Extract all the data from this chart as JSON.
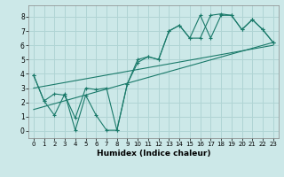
{
  "xlabel": "Humidex (Indice chaleur)",
  "background_color": "#cce8e8",
  "grid_color": "#b0d4d4",
  "line_color": "#1a7a6a",
  "xlim": [
    -0.5,
    23.5
  ],
  "ylim": [
    -0.5,
    8.8
  ],
  "xticks": [
    0,
    1,
    2,
    3,
    4,
    5,
    6,
    7,
    8,
    9,
    10,
    11,
    12,
    13,
    14,
    15,
    16,
    17,
    18,
    19,
    20,
    21,
    22,
    23
  ],
  "yticks": [
    0,
    1,
    2,
    3,
    4,
    5,
    6,
    7,
    8
  ],
  "line1_x": [
    0,
    1,
    2,
    3,
    4,
    5,
    6,
    7,
    8,
    9,
    10,
    11,
    12,
    13,
    14,
    15,
    16,
    17,
    18,
    19,
    20,
    21,
    22,
    23
  ],
  "line1_y": [
    3.9,
    2.1,
    1.1,
    2.6,
    0.05,
    2.5,
    1.1,
    0.05,
    0.05,
    3.3,
    5.0,
    5.2,
    5.0,
    7.0,
    7.4,
    6.5,
    8.1,
    6.5,
    8.1,
    8.1,
    7.1,
    7.8,
    7.1,
    6.2
  ],
  "line2_x": [
    0,
    1,
    2,
    3,
    4,
    5,
    6,
    7,
    8,
    9,
    10,
    11,
    12,
    13,
    14,
    15,
    16,
    17,
    18,
    19,
    20,
    21,
    22,
    23
  ],
  "line2_y": [
    3.9,
    2.1,
    2.6,
    2.5,
    0.9,
    3.0,
    2.9,
    3.0,
    0.05,
    3.3,
    4.8,
    5.2,
    5.0,
    7.0,
    7.4,
    6.5,
    6.5,
    8.1,
    8.2,
    8.1,
    7.1,
    7.8,
    7.1,
    6.2
  ],
  "line3_x": [
    0,
    23
  ],
  "line3_y": [
    3.0,
    6.0
  ],
  "line4_x": [
    0,
    23
  ],
  "line4_y": [
    1.5,
    6.2
  ]
}
